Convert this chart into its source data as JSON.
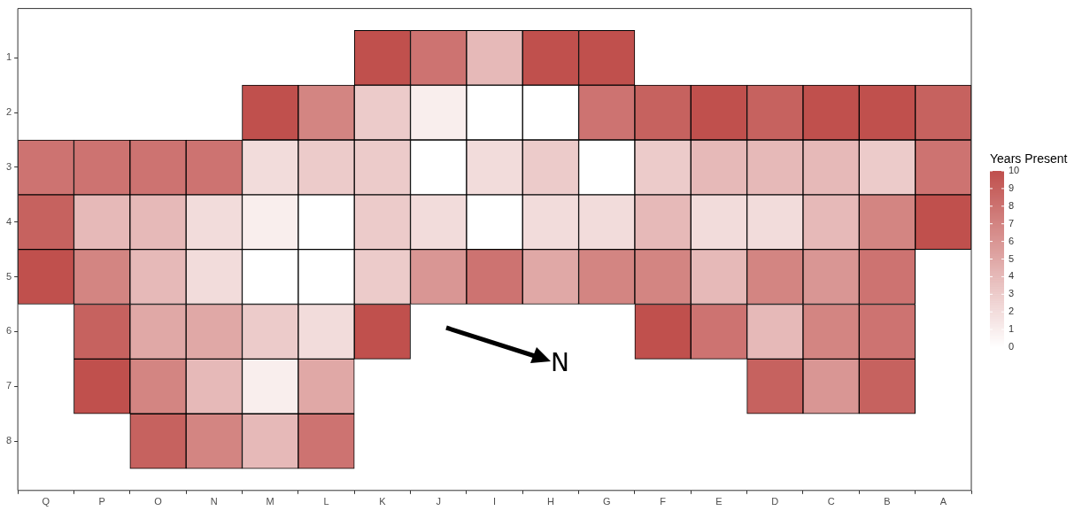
{
  "chart_data": {
    "type": "heatmap",
    "legend_title": "Years Present",
    "clim": [
      0,
      10
    ],
    "cticks": [
      0,
      1,
      2,
      3,
      4,
      5,
      6,
      7,
      8,
      9,
      10
    ],
    "grid": false,
    "annotations": [
      "N"
    ],
    "categories": [
      "Q",
      "P",
      "O",
      "N",
      "M",
      "L",
      "K",
      "J",
      "I",
      "H",
      "G",
      "F",
      "E",
      "D",
      "C",
      "B",
      "A"
    ],
    "y_categories": [
      "1",
      "2",
      "3",
      "4",
      "5",
      "6",
      "7",
      "8"
    ],
    "cells": [
      [
        null,
        null,
        null,
        null,
        null,
        null,
        10,
        8,
        4,
        10,
        10,
        null,
        null,
        null,
        null,
        null,
        null
      ],
      [
        null,
        null,
        null,
        null,
        10,
        7,
        3,
        1,
        0,
        0,
        8,
        9,
        10,
        9,
        10,
        10,
        9
      ],
      [
        8,
        8,
        8,
        8,
        2,
        3,
        3,
        0,
        2,
        3,
        0,
        3,
        4,
        4,
        4,
        3,
        8
      ],
      [
        9,
        4,
        4,
        2,
        1,
        0,
        3,
        2,
        0,
        2,
        2,
        4,
        2,
        2,
        4,
        7,
        10
      ],
      [
        10,
        7,
        4,
        2,
        0,
        0,
        3,
        6,
        8,
        5,
        7,
        7,
        4,
        7,
        6,
        8,
        null
      ],
      [
        null,
        9,
        5,
        5,
        3,
        2,
        10,
        null,
        null,
        null,
        null,
        10,
        8,
        4,
        7,
        8,
        null
      ],
      [
        null,
        10,
        7,
        4,
        1,
        5,
        null,
        null,
        null,
        null,
        null,
        null,
        null,
        9,
        6,
        9,
        null
      ],
      [
        null,
        null,
        9,
        7,
        4,
        8,
        null,
        null,
        null,
        null,
        null,
        null,
        null,
        null,
        null,
        null,
        null
      ]
    ]
  }
}
